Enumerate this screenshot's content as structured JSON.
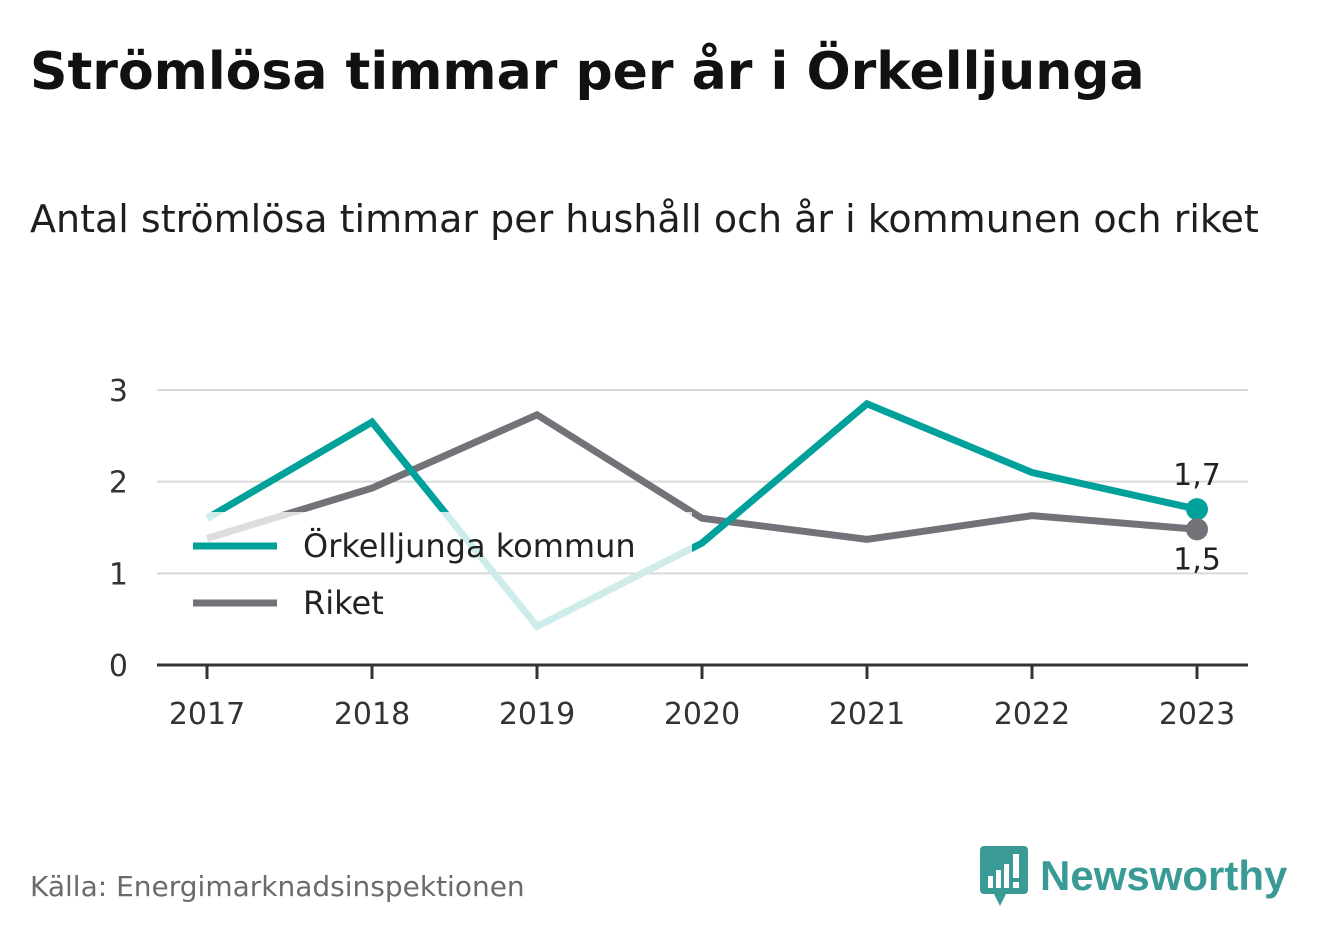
{
  "title": "Strömlösa timmar per år i Örkelljunga",
  "subtitle": "Antal strömlösa timmar per hushåll och år i kommunen och riket",
  "source": "Källa: Energimarknadsinspektionen",
  "brand": {
    "name": "Newsworthy",
    "icon": "newsworthy-logo-icon",
    "color": "#3a9a96"
  },
  "colors": {
    "kommun": "#00a19a",
    "kommun_faded": "#cdeceb",
    "riket": "#737278",
    "riket_faded": "#dddddd",
    "grid": "#d9d9d9",
    "axis": "#333333"
  },
  "chart_data": {
    "type": "line",
    "x": [
      "2017",
      "2018",
      "2019",
      "2020",
      "2021",
      "2022",
      "2023"
    ],
    "ylim": [
      0,
      3
    ],
    "yticks": [
      "0",
      "1",
      "2",
      "3"
    ],
    "grid": true,
    "legend_position": "left-middle",
    "series": [
      {
        "name": "Örkelljunga kommun",
        "values": [
          1.6,
          2.65,
          0.42,
          1.33,
          2.85,
          2.1,
          1.7
        ],
        "end_label": "1,7"
      },
      {
        "name": "Riket",
        "values": [
          1.38,
          1.93,
          2.73,
          1.6,
          1.37,
          1.63,
          1.48
        ],
        "end_label": "1,5"
      }
    ]
  }
}
